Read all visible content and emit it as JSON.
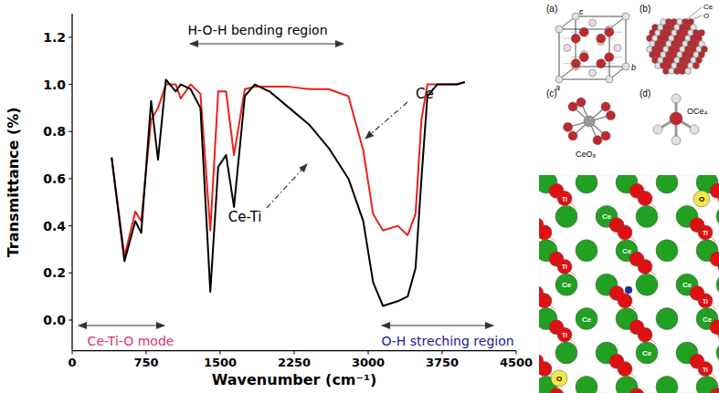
{
  "chart_data": {
    "type": "line",
    "x_label": "Wavenumber (cm⁻¹)",
    "y_label": "Transmittance (%)",
    "xlim": [
      0,
      4500
    ],
    "ylim": [
      -0.13,
      1.3
    ],
    "xticks": [
      0,
      750,
      1500,
      2250,
      3000,
      3750,
      4500
    ],
    "yticks": [
      {
        "value": 0,
        "label": "0.0"
      },
      {
        "value": 0.2,
        "label": "0.2"
      },
      {
        "value": 0.4,
        "label": "0.4"
      },
      {
        "value": 0.6,
        "label": "0.6"
      },
      {
        "value": 0.8,
        "label": "0.8"
      },
      {
        "value": 1,
        "label": "1.0"
      },
      {
        "value": 1.2,
        "label": "1.2"
      }
    ],
    "x": [
      400,
      530,
      640,
      700,
      800,
      870,
      950,
      1050,
      1100,
      1200,
      1300,
      1400,
      1480,
      1560,
      1640,
      1750,
      1850,
      2000,
      2200,
      2400,
      2600,
      2800,
      2950,
      3050,
      3150,
      3300,
      3400,
      3480,
      3540,
      3600,
      3700,
      3900,
      3980
    ],
    "series": [
      {
        "name": "Ce",
        "color": "#e8201c",
        "values": [
          0.69,
          0.27,
          0.46,
          0.42,
          0.85,
          0.9,
          1.0,
          1.0,
          0.94,
          1.0,
          0.96,
          0.38,
          0.97,
          0.97,
          0.7,
          0.98,
          0.99,
          0.99,
          0.99,
          0.98,
          0.98,
          0.95,
          0.72,
          0.45,
          0.38,
          0.4,
          0.36,
          0.45,
          0.85,
          1.0,
          1.0,
          1.0,
          1.01
        ]
      },
      {
        "name": "Ce-Ti",
        "color": "#000000",
        "values": [
          0.69,
          0.25,
          0.42,
          0.37,
          0.93,
          0.68,
          1.02,
          0.97,
          1.0,
          0.98,
          0.9,
          0.12,
          0.65,
          0.7,
          0.48,
          0.95,
          1.0,
          0.97,
          0.9,
          0.83,
          0.73,
          0.6,
          0.42,
          0.16,
          0.06,
          0.08,
          0.1,
          0.22,
          0.6,
          0.95,
          1.0,
          1.0,
          1.01
        ]
      }
    ],
    "annotations": [
      "H-O-H bending region",
      "Ce-Ti-O mode",
      "O-H streching region"
    ]
  },
  "structure_panel": {
    "panel_labels": [
      "(a)",
      "(b)",
      "(c)",
      "(d)"
    ],
    "cell_axes": [
      "a",
      "b",
      "c"
    ],
    "cluster_legend": [
      "Ce",
      "O"
    ],
    "polyhedron_labels": [
      "CeO₈",
      "OCe₄"
    ],
    "crystal_labels": [
      "Ce",
      "Ti",
      "O"
    ]
  }
}
